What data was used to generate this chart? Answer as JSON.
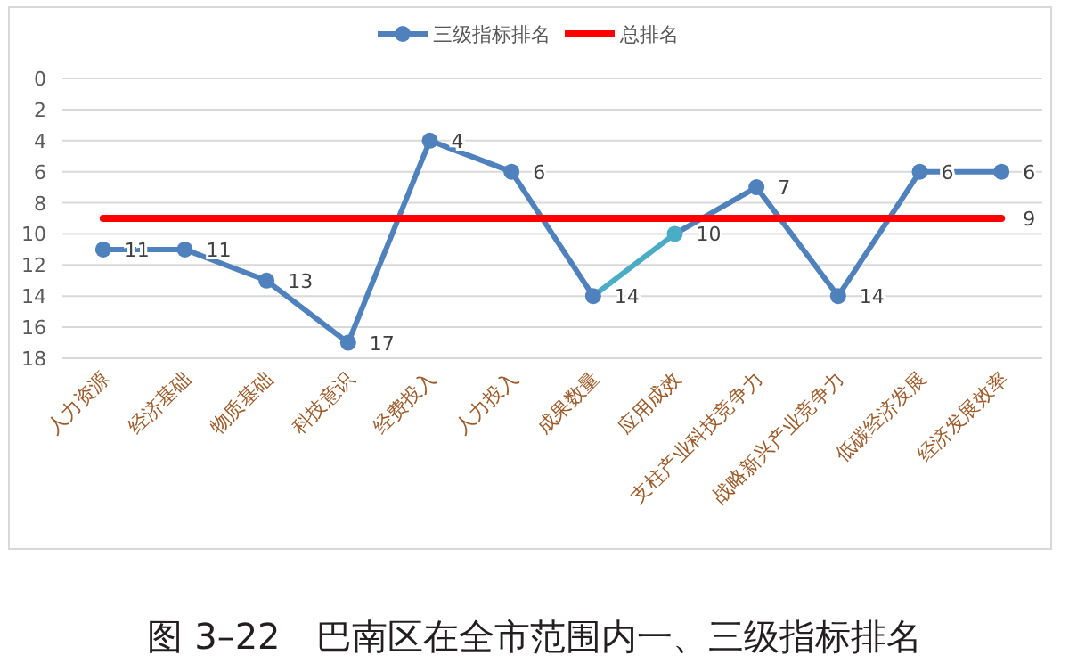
{
  "chart_data": {
    "type": "line",
    "title": "图 3–22　巴南区在全市范围内一、三级指标排名",
    "categories": [
      "人力资源",
      "经济基础",
      "物质基础",
      "科技意识",
      "经费投入",
      "人力投入",
      "成果数量",
      "应用成效",
      "支柱产业科技竞争力",
      "战略新兴产业竞争力",
      "低碳经济发展",
      "经济发展效率"
    ],
    "series": [
      {
        "name": "三级指标排名",
        "color": "#4f81bd",
        "colors": [
          "#4f81bd",
          "#4f81bd",
          "#4f81bd",
          "#4f81bd",
          "#4f81bd",
          "#4f81bd",
          "#4f81bd",
          "#4bacc6",
          "#4f81bd",
          "#4f81bd",
          "#4f81bd",
          "#4f81bd"
        ],
        "marker": "circle",
        "values": [
          11,
          11,
          13,
          17,
          4,
          6,
          14,
          10,
          7,
          14,
          6,
          6
        ],
        "value_labels": [
          "11",
          "11",
          "13",
          "17",
          "4",
          "6",
          "14",
          "10",
          "7",
          "14",
          "6",
          "6"
        ]
      },
      {
        "name": "总排名",
        "color": "#ff0000",
        "marker": "none",
        "values": [
          9,
          9,
          9,
          9,
          9,
          9,
          9,
          9,
          9,
          9,
          9,
          9
        ],
        "value_labels": [
          null,
          null,
          null,
          null,
          null,
          null,
          null,
          null,
          null,
          null,
          null,
          "9"
        ]
      }
    ],
    "ylim": [
      18,
      0
    ],
    "yticks": [
      0,
      2,
      4,
      6,
      8,
      10,
      12,
      14,
      16,
      18
    ],
    "grid": "y",
    "legend": "top"
  }
}
